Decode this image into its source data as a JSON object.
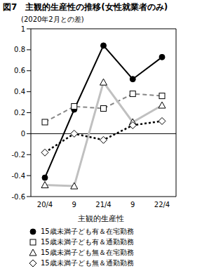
{
  "chart_data": {
    "type": "line",
    "title": "図7　主観的生産性の推移(女性就業者のみ)",
    "y_label": "(2020年2月との差)",
    "x_label": "主観的生産性",
    "categories": [
      "20/4",
      "9",
      "21/4",
      "9",
      "22/4"
    ],
    "ylim": [
      -0.6,
      1
    ],
    "yticks": [
      -0.6,
      -0.4,
      -0.2,
      0,
      0.2,
      0.4,
      0.6,
      0.8,
      1
    ],
    "grid": false,
    "legend": "bottom",
    "series": [
      {
        "name": "15歳未満子ども有＆在宅勤務",
        "color": "#000000",
        "marker": "circle",
        "line_style": "solid",
        "values": [
          -0.42,
          0.23,
          0.84,
          0.52,
          0.73
        ]
      },
      {
        "name": "15歳未満子ども有＆通勤勤務",
        "color": "#888888",
        "marker": "square",
        "line_style": "dashed",
        "values": [
          0.11,
          0.26,
          0.24,
          0.38,
          0.36
        ]
      },
      {
        "name": "15歳未満子ども無＆在宅勤務",
        "color": "#c0c0c0",
        "marker": "triangle",
        "line_style": "solid",
        "values": [
          -0.49,
          -0.5,
          0.49,
          0.11,
          0.27
        ]
      },
      {
        "name": "15歳未満子ども無＆通勤勤務",
        "color": "#000000",
        "marker": "diamond",
        "line_style": "dotted",
        "values": [
          -0.18,
          0.0,
          -0.06,
          0.08,
          0.12
        ]
      }
    ]
  }
}
